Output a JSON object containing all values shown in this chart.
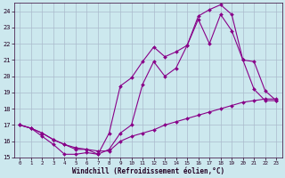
{
  "xlabel": "Windchill (Refroidissement éolien,°C)",
  "bg_color": "#cce8ee",
  "grid_color": "#aabbcc",
  "line_color": "#880088",
  "xlim": [
    -0.5,
    23.5
  ],
  "ylim": [
    15,
    24.5
  ],
  "yticks": [
    15,
    16,
    17,
    18,
    19,
    20,
    21,
    22,
    23,
    24
  ],
  "xticks": [
    0,
    1,
    2,
    3,
    4,
    5,
    6,
    7,
    8,
    9,
    10,
    11,
    12,
    13,
    14,
    15,
    16,
    17,
    18,
    19,
    20,
    21,
    22,
    23
  ],
  "line1_x": [
    0,
    1,
    2,
    3,
    4,
    5,
    6,
    7,
    8,
    9,
    10,
    11,
    12,
    13,
    14,
    15,
    16,
    17,
    18,
    19,
    20,
    21,
    22,
    23
  ],
  "line1_y": [
    17.0,
    16.8,
    16.3,
    15.8,
    15.2,
    15.2,
    15.3,
    15.2,
    16.5,
    19.4,
    19.9,
    20.9,
    21.8,
    21.2,
    21.5,
    21.9,
    23.7,
    24.1,
    24.4,
    23.8,
    21.0,
    19.2,
    18.5,
    18.5
  ],
  "line2_x": [
    0,
    1,
    2,
    3,
    4,
    5,
    6,
    7,
    8,
    9,
    10,
    11,
    12,
    13,
    14,
    15,
    16,
    17,
    18,
    19,
    20,
    21,
    22,
    23
  ],
  "line2_y": [
    17.0,
    16.8,
    16.5,
    16.1,
    15.8,
    15.5,
    15.5,
    15.2,
    15.5,
    16.5,
    17.0,
    19.5,
    20.9,
    20.0,
    20.5,
    21.9,
    23.5,
    22.0,
    23.8,
    22.8,
    21.0,
    20.9,
    19.1,
    18.5
  ],
  "line3_x": [
    0,
    1,
    2,
    3,
    4,
    5,
    6,
    7,
    8,
    9,
    10,
    11,
    12,
    13,
    14,
    15,
    16,
    17,
    18,
    19,
    20,
    21,
    22,
    23
  ],
  "line3_y": [
    17.0,
    16.8,
    16.5,
    16.1,
    15.8,
    15.6,
    15.5,
    15.4,
    15.4,
    16.0,
    16.3,
    16.5,
    16.7,
    17.0,
    17.2,
    17.4,
    17.6,
    17.8,
    18.0,
    18.2,
    18.4,
    18.5,
    18.6,
    18.6
  ]
}
